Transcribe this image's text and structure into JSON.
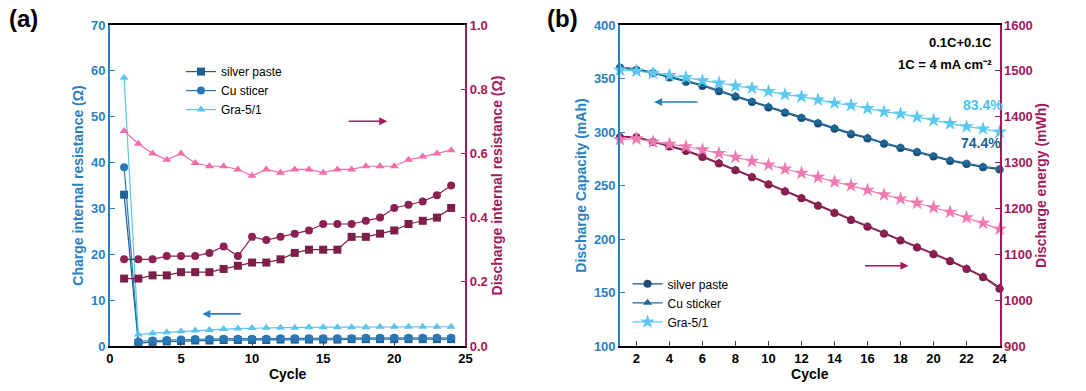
{
  "chart_data": [
    {
      "type": "line",
      "title": "(a)",
      "x_label": "Cycle",
      "y_label": "Charge internal resistance (Ω)",
      "y2_label": "Discharge internal resistance (Ω)",
      "x": [
        1,
        2,
        3,
        4,
        5,
        6,
        7,
        8,
        9,
        10,
        11,
        12,
        13,
        14,
        15,
        16,
        17,
        18,
        19,
        20,
        21,
        22,
        23,
        24
      ],
      "xlim": [
        0,
        25
      ],
      "xticks": [
        0,
        5,
        10,
        15,
        20,
        25
      ],
      "ylim": [
        0,
        70
      ],
      "yticks": [
        0,
        10,
        20,
        30,
        40,
        50,
        60,
        70
      ],
      "y2lim": [
        0,
        1
      ],
      "y2ticks": [
        {
          "value": 0,
          "label": "0.0"
        },
        0.2,
        0.4,
        0.6,
        0.8,
        {
          "value": 1,
          "label": "1.0"
        }
      ],
      "grid": false,
      "legend": "top",
      "series": [
        {
          "name": "silver paste",
          "color": "#1f5f94",
          "marker": "square",
          "line_style": "solid",
          "values": [
            33,
            0.6,
            0.9,
            1.0,
            1.1,
            1.2,
            1.2,
            1.3,
            1.3,
            1.3,
            1.3,
            1.4,
            1.4,
            1.4,
            1.4,
            1.4,
            1.5,
            1.5,
            1.5,
            1.5,
            1.5,
            1.5,
            1.5,
            1.5
          ]
        },
        {
          "name": "Cu sticer",
          "color": "#2878b5",
          "marker": "circle",
          "line_style": "solid",
          "values": [
            39,
            1.0,
            1.2,
            1.3,
            1.4,
            1.5,
            1.5,
            1.6,
            1.6,
            1.6,
            1.6,
            1.7,
            1.7,
            1.7,
            1.7,
            1.7,
            1.7,
            1.8,
            1.8,
            1.8,
            1.8,
            1.8,
            1.8,
            1.8
          ]
        },
        {
          "name": "Gra-5/1",
          "color": "#5cc3ec",
          "marker": "triangle-up",
          "line_style": "solid",
          "values": [
            58.5,
            2.5,
            2.8,
            3.0,
            3.2,
            3.4,
            3.5,
            3.7,
            3.8,
            3.9,
            4.0,
            4.0,
            4.0,
            4.1,
            4.1,
            4.1,
            4.1,
            4.1,
            4.2,
            4.2,
            4.2,
            4.2,
            4.2,
            4.2
          ]
        },
        {
          "name": "silver paste",
          "color": "#7b1e48",
          "marker": "square",
          "line_style": "solid",
          "axis": "y2",
          "values": [
            0.21,
            0.21,
            0.22,
            0.22,
            0.23,
            0.23,
            0.23,
            0.24,
            0.25,
            0.26,
            0.26,
            0.27,
            0.29,
            0.3,
            0.3,
            0.3,
            0.34,
            0.34,
            0.35,
            0.36,
            0.38,
            0.39,
            0.4,
            0.43
          ]
        },
        {
          "name": "Cu sticer",
          "color": "#8e2052",
          "marker": "circle",
          "line_style": "solid",
          "axis": "y2",
          "values": [
            0.27,
            0.27,
            0.27,
            0.28,
            0.28,
            0.28,
            0.29,
            0.31,
            0.28,
            0.34,
            0.33,
            0.34,
            0.35,
            0.36,
            0.38,
            0.38,
            0.38,
            0.39,
            0.4,
            0.43,
            0.44,
            0.45,
            0.47,
            0.5
          ]
        },
        {
          "name": "Gra-5/1",
          "color": "#f06eaa",
          "marker": "triangle-up",
          "line_style": "solid",
          "axis": "y2",
          "values": [
            0.67,
            0.63,
            0.6,
            0.58,
            0.6,
            0.57,
            0.56,
            0.56,
            0.55,
            0.53,
            0.55,
            0.54,
            0.55,
            0.55,
            0.54,
            0.55,
            0.55,
            0.56,
            0.56,
            0.56,
            0.58,
            0.59,
            0.6,
            0.61
          ]
        }
      ]
    },
    {
      "type": "line",
      "title": "(b)",
      "x_label": "Cycle",
      "y_label": "Discharge Capacity (mAh)",
      "y2_label": "Discharge energy (mWh)",
      "x": [
        1,
        2,
        3,
        4,
        5,
        6,
        7,
        8,
        9,
        10,
        11,
        12,
        13,
        14,
        15,
        16,
        17,
        18,
        19,
        20,
        21,
        22,
        23,
        24
      ],
      "xlim": [
        1,
        24
      ],
      "xticks": [
        2,
        4,
        6,
        8,
        10,
        12,
        14,
        16,
        18,
        20,
        22,
        24
      ],
      "ylim": [
        100,
        400
      ],
      "yticks": [
        100,
        150,
        200,
        250,
        300,
        350,
        400
      ],
      "y2lim": [
        900,
        1600
      ],
      "y2ticks": [
        900,
        1000,
        1100,
        1200,
        1300,
        1400,
        1500,
        1600
      ],
      "grid": false,
      "legend": "bottom-left",
      "annotations": [
        {
          "text": "0.1C+0.1C",
          "color": "#000000"
        },
        {
          "text": "1C = 4 mA cm⁻²",
          "color": "#000000"
        },
        {
          "text": "83.4%",
          "color": "#4fc0ec"
        },
        {
          "text": "74.4%",
          "color": "#1d5f8f"
        }
      ],
      "series": [
        {
          "name": "silver paste",
          "color": "#1b4f7a",
          "marker": "circle",
          "line_style": "solid",
          "values": [
            360,
            358,
            355,
            351,
            347,
            343,
            338,
            333,
            328,
            323,
            318,
            313,
            308,
            303,
            298,
            294,
            289,
            285,
            281,
            277,
            273,
            270,
            267,
            265
          ]
        },
        {
          "name": "Cu sticker",
          "color": "#1b6a9a",
          "marker": "triangle-up",
          "line_style": "solid",
          "values": [
            361,
            359,
            356,
            352,
            348,
            344,
            339,
            334,
            329,
            324,
            319,
            314,
            309,
            304,
            299,
            295,
            290,
            286,
            282,
            278,
            274,
            271,
            268,
            266
          ]
        },
        {
          "name": "Gra-5/1",
          "color": "#5ac8f0",
          "marker": "star",
          "line_style": "solid",
          "values": [
            358,
            357,
            355,
            353,
            351,
            348,
            346,
            343,
            341,
            338,
            335,
            333,
            330,
            327,
            325,
            322,
            319,
            317,
            314,
            311,
            308,
            305,
            303,
            300
          ]
        },
        {
          "name": "silver paste",
          "color": "#7b1e48",
          "marker": "circle",
          "line_style": "solid",
          "axis": "y2",
          "values": [
            1355,
            1355,
            1345,
            1335,
            1325,
            1312,
            1298,
            1283,
            1268,
            1252,
            1237,
            1222,
            1206,
            1190,
            1175,
            1160,
            1145,
            1130,
            1115,
            1100,
            1085,
            1068,
            1050,
            1025
          ]
        },
        {
          "name": "Cu sticker",
          "color": "#8e2052",
          "marker": "triangle-up",
          "line_style": "solid",
          "axis": "y2",
          "values": [
            1357,
            1356,
            1347,
            1337,
            1327,
            1314,
            1300,
            1285,
            1270,
            1254,
            1239,
            1224,
            1208,
            1192,
            1177,
            1162,
            1147,
            1132,
            1117,
            1102,
            1087,
            1070,
            1052,
            1028
          ]
        },
        {
          "name": "Gra-5/1",
          "color": "#f07ab0",
          "marker": "star",
          "line_style": "solid",
          "axis": "y2",
          "values": [
            1350,
            1352,
            1345,
            1340,
            1335,
            1328,
            1320,
            1312,
            1303,
            1295,
            1286,
            1277,
            1268,
            1258,
            1250,
            1240,
            1230,
            1221,
            1212,
            1202,
            1192,
            1180,
            1168,
            1155
          ]
        }
      ]
    }
  ]
}
